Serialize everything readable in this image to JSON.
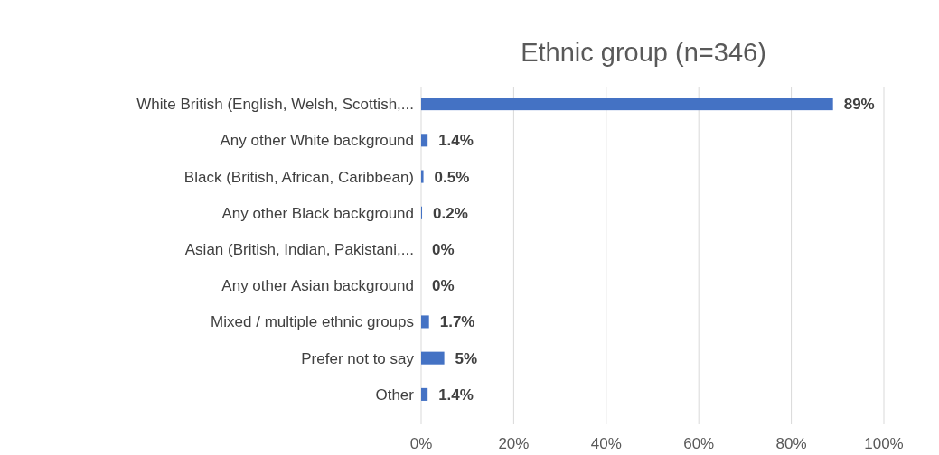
{
  "chart_data": {
    "type": "bar",
    "orientation": "horizontal",
    "title": "Ethnic group (n=346)",
    "categories": [
      "White British (English, Welsh, Scottish,...",
      "Any other White background",
      "Black (British, African, Caribbean)",
      "Any other Black background",
      "Asian (British, Indian, Pakistani,...",
      "Any other Asian background",
      "Mixed / multiple ethnic groups",
      "Prefer not to say",
      "Other"
    ],
    "values": [
      89,
      1.4,
      0.5,
      0.2,
      0,
      0,
      1.7,
      5,
      1.4
    ],
    "value_labels": [
      "89%",
      "1.4%",
      "0.5%",
      "0.2%",
      "0%",
      "0%",
      "1.7%",
      "5%",
      "1.4%"
    ],
    "color": "#4472c4",
    "xlim": [
      0,
      100
    ],
    "xticks": [
      {
        "value": 0,
        "label": "0%"
      },
      {
        "value": 20,
        "label": "20%"
      },
      {
        "value": 40,
        "label": "40%"
      },
      {
        "value": 60,
        "label": "60%"
      },
      {
        "value": 80,
        "label": "80%"
      },
      {
        "value": 100,
        "label": "100%"
      }
    ],
    "grid": "x"
  }
}
